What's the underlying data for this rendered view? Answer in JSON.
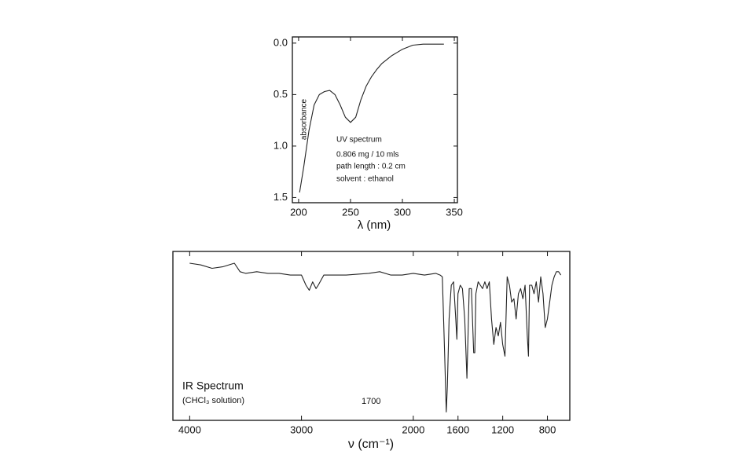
{
  "chart_data": [
    {
      "type": "line",
      "x_label": "λ (nm)",
      "y_label": "absorbance",
      "annotations": [
        "UV spectrum",
        "0.806 mg / 10 mls",
        "path length :  0.2  cm",
        "solvent : ethanol"
      ],
      "x": [
        201,
        205,
        210,
        215,
        220,
        225,
        230,
        235,
        240,
        245,
        250,
        255,
        260,
        265,
        270,
        275,
        280,
        285,
        290,
        295,
        300,
        305,
        310,
        320,
        330,
        340
      ],
      "values": [
        1.45,
        1.2,
        0.85,
        0.6,
        0.5,
        0.47,
        0.46,
        0.5,
        0.6,
        0.72,
        0.77,
        0.72,
        0.55,
        0.42,
        0.33,
        0.26,
        0.2,
        0.16,
        0.12,
        0.09,
        0.06,
        0.04,
        0.02,
        0.01,
        0.01,
        0.01
      ],
      "color": "#222222",
      "xlim": [
        194,
        353
      ],
      "ylim": [
        -0.06,
        1.55
      ],
      "y_inverted": true,
      "xticks": [
        200,
        250,
        300,
        350
      ],
      "yticks": [
        {
          "value": 0,
          "label": "0.0"
        },
        {
          "value": 0.5,
          "label": "0.5"
        },
        {
          "value": 1,
          "label": "1.0"
        },
        {
          "value": 1.5,
          "label": "1.5"
        }
      ]
    },
    {
      "type": "line",
      "x_label": "ν (cm⁻¹)",
      "annotations": [
        "IR Spectrum",
        "(CHCl₃ solution)",
        "1700"
      ],
      "x": [
        4000,
        3900,
        3800,
        3700,
        3600,
        3550,
        3500,
        3400,
        3300,
        3200,
        3100,
        3000,
        2960,
        2930,
        2900,
        2870,
        2850,
        2800,
        2600,
        2400,
        2300,
        2200,
        2100,
        2000,
        1900,
        1800,
        1760,
        1740,
        1720,
        1705,
        1695,
        1680,
        1660,
        1640,
        1620,
        1610,
        1600,
        1580,
        1560,
        1540,
        1520,
        1510,
        1500,
        1480,
        1460,
        1450,
        1440,
        1420,
        1400,
        1380,
        1360,
        1340,
        1320,
        1300,
        1280,
        1260,
        1240,
        1220,
        1200,
        1180,
        1160,
        1140,
        1120,
        1100,
        1080,
        1060,
        1040,
        1020,
        1000,
        980,
        970,
        960,
        940,
        920,
        900,
        880,
        860,
        840,
        820,
        800,
        780,
        760,
        740,
        720,
        700,
        680
      ],
      "values": [
        93,
        92,
        90,
        91,
        93,
        88,
        87,
        88,
        87,
        87,
        86,
        86,
        80,
        77,
        82,
        78,
        80,
        86,
        86,
        87,
        88,
        86,
        86,
        87,
        86,
        87,
        86,
        85,
        40,
        5,
        20,
        60,
        80,
        82,
        60,
        48,
        75,
        80,
        78,
        60,
        25,
        50,
        78,
        78,
        40,
        40,
        75,
        82,
        80,
        78,
        82,
        78,
        82,
        60,
        45,
        55,
        50,
        58,
        45,
        38,
        85,
        80,
        70,
        72,
        60,
        75,
        78,
        72,
        80,
        50,
        38,
        80,
        80,
        75,
        82,
        70,
        85,
        75,
        55,
        60,
        70,
        80,
        85,
        88,
        88,
        86
      ],
      "color": "#222222",
      "xlim": [
        4150,
        600
      ],
      "ylim": [
        0,
        100
      ],
      "xticks": [
        4000,
        3000,
        2000,
        1600,
        1200,
        800
      ]
    }
  ]
}
